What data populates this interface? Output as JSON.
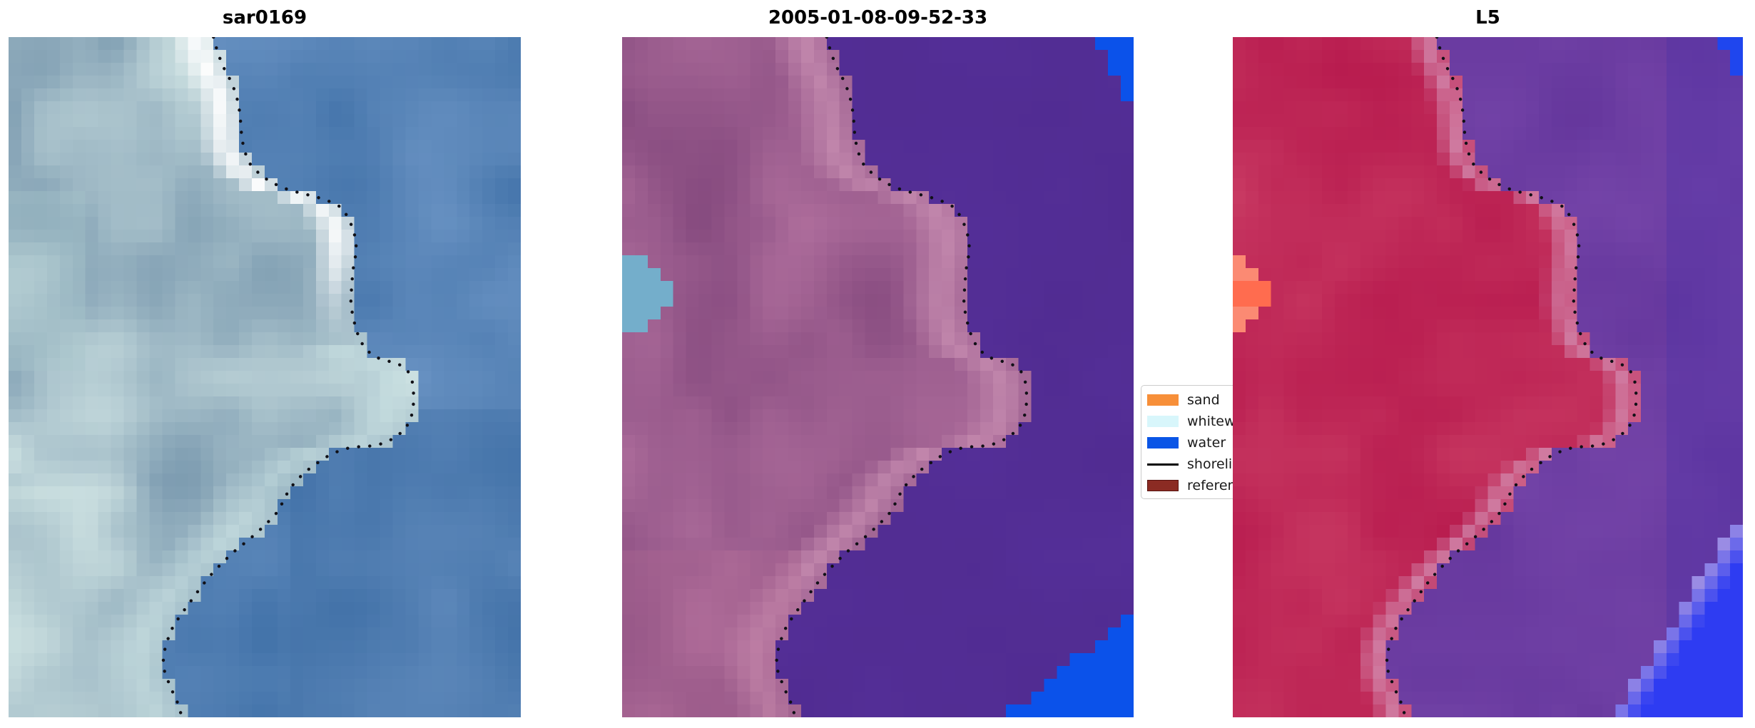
{
  "chart_data": {
    "type": "image",
    "description": "Three-panel satellite image comparison of a coastal headland with a dotted detected shoreline overlaid: SAR backscatter image, classified optical image dated 2005-01-08-09-52-33, and Landsat 5 false-colour image.",
    "panels": [
      {
        "title": "sar0169",
        "kind": "sar",
        "land_palette": [
          "#7494ab",
          "#cfe3e3"
        ],
        "water_palette": [
          "#3e6fa6",
          "#6b94c4"
        ],
        "highlight": "#ffffff",
        "band": "#cfe6e6",
        "patches": []
      },
      {
        "title": "2005-01-08-09-52-33",
        "kind": "classified",
        "land_palette": [
          "#82477c",
          "#b06f9d"
        ],
        "water_palette": [
          "#4f2a8e",
          "#55309a"
        ],
        "band": "#c98fb2",
        "patches": [
          {
            "type": "corner-tr",
            "color": "#0b52ea",
            "w": 0.07,
            "h": 0.105
          },
          {
            "type": "corner-br",
            "color": "#0b52ea",
            "x0": 0.74,
            "y0": 0.848
          },
          {
            "type": "edge-left",
            "color": "#74aecb",
            "y0": 0.31,
            "y1": 0.445,
            "w": 0.095
          }
        ]
      },
      {
        "title": "L5",
        "kind": "classified",
        "land_palette": [
          "#b5164b",
          "#cb3f66"
        ],
        "water_palette": [
          "#5c2f96",
          "#7c4bae"
        ],
        "band": "#d490b4",
        "patches": [
          {
            "type": "corner-tr",
            "color": "#1f46ee",
            "w": 0.05,
            "h": 0.07
          },
          {
            "type": "corner-br",
            "color": "#2e3cf2",
            "fringe": "#9a8ce4",
            "x0": 0.74,
            "y0": 0.7
          },
          {
            "type": "edge-left",
            "color": "#fb8a73",
            "core": "#ff6c4f",
            "y0": 0.32,
            "y1": 0.435,
            "w": 0.08
          }
        ]
      }
    ],
    "legend": {
      "items": [
        {
          "label": "sand",
          "swatch": "patch",
          "color": "#f78f39"
        },
        {
          "label": "whitewater",
          "swatch": "patch",
          "color": "#d8f6fb"
        },
        {
          "label": "water",
          "swatch": "patch",
          "color": "#0a55e6"
        },
        {
          "label": "shoreline",
          "swatch": "line",
          "color": "#000000"
        },
        {
          "label": "reference shoreline",
          "swatch": "patch",
          "color": "#8b2b23",
          "border": "#581410"
        }
      ]
    },
    "shoreline": {
      "color": "#101016",
      "points": [
        [
          0.4,
          0.0
        ],
        [
          0.408,
          0.022
        ],
        [
          0.418,
          0.042
        ],
        [
          0.432,
          0.062
        ],
        [
          0.444,
          0.083
        ],
        [
          0.45,
          0.104
        ],
        [
          0.453,
          0.125
        ],
        [
          0.455,
          0.146
        ],
        [
          0.46,
          0.167
        ],
        [
          0.472,
          0.187
        ],
        [
          0.492,
          0.203
        ],
        [
          0.514,
          0.214
        ],
        [
          0.541,
          0.223
        ],
        [
          0.568,
          0.229
        ],
        [
          0.596,
          0.234
        ],
        [
          0.622,
          0.24
        ],
        [
          0.649,
          0.25
        ],
        [
          0.663,
          0.265
        ],
        [
          0.673,
          0.283
        ],
        [
          0.679,
          0.302
        ],
        [
          0.677,
          0.323
        ],
        [
          0.672,
          0.344
        ],
        [
          0.67,
          0.365
        ],
        [
          0.668,
          0.386
        ],
        [
          0.671,
          0.406
        ],
        [
          0.677,
          0.426
        ],
        [
          0.686,
          0.446
        ],
        [
          0.7,
          0.461
        ],
        [
          0.718,
          0.471
        ],
        [
          0.74,
          0.476
        ],
        [
          0.762,
          0.481
        ],
        [
          0.779,
          0.49
        ],
        [
          0.788,
          0.506
        ],
        [
          0.791,
          0.526
        ],
        [
          0.79,
          0.547
        ],
        [
          0.784,
          0.564
        ],
        [
          0.772,
          0.578
        ],
        [
          0.754,
          0.589
        ],
        [
          0.733,
          0.597
        ],
        [
          0.71,
          0.601
        ],
        [
          0.687,
          0.602
        ],
        [
          0.664,
          0.604
        ],
        [
          0.643,
          0.609
        ],
        [
          0.621,
          0.617
        ],
        [
          0.601,
          0.627
        ],
        [
          0.581,
          0.638
        ],
        [
          0.563,
          0.651
        ],
        [
          0.547,
          0.666
        ],
        [
          0.536,
          0.683
        ],
        [
          0.524,
          0.699
        ],
        [
          0.508,
          0.712
        ],
        [
          0.49,
          0.725
        ],
        [
          0.472,
          0.737
        ],
        [
          0.454,
          0.748
        ],
        [
          0.436,
          0.759
        ],
        [
          0.42,
          0.771
        ],
        [
          0.404,
          0.783
        ],
        [
          0.389,
          0.796
        ],
        [
          0.375,
          0.809
        ],
        [
          0.362,
          0.823
        ],
        [
          0.348,
          0.837
        ],
        [
          0.335,
          0.851
        ],
        [
          0.322,
          0.865
        ],
        [
          0.313,
          0.881
        ],
        [
          0.306,
          0.897
        ],
        [
          0.302,
          0.913
        ],
        [
          0.303,
          0.929
        ],
        [
          0.31,
          0.944
        ],
        [
          0.318,
          0.959
        ],
        [
          0.327,
          0.973
        ],
        [
          0.334,
          0.987
        ],
        [
          0.338,
          1.0
        ]
      ]
    }
  }
}
